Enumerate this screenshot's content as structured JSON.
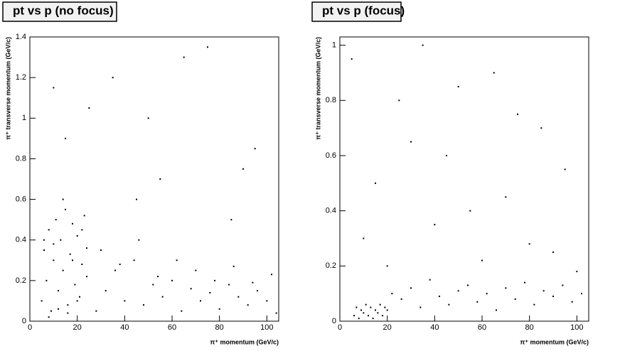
{
  "chart_data": [
    {
      "type": "scatter",
      "title": "pt vs p (no focus)",
      "xlabel": "π⁺ momentum (GeV/c)",
      "ylabel": "π⁺ transverse momentum (GeV/c)",
      "color": "#000000",
      "xlim": [
        0,
        105
      ],
      "ylim": [
        0,
        1.4
      ],
      "xticks": [
        0,
        20,
        40,
        60,
        80,
        100
      ],
      "yticks": [
        0,
        0.2,
        0.4,
        0.6,
        0.8,
        1,
        1.2,
        1.4
      ],
      "x": [
        5,
        6,
        7,
        8,
        9,
        10,
        11,
        12,
        13,
        14,
        15,
        16,
        17,
        18,
        19,
        20,
        21,
        22,
        23,
        24,
        8,
        12,
        16,
        20,
        10,
        14,
        18,
        22,
        6,
        24,
        28,
        32,
        36,
        40,
        44,
        48,
        52,
        56,
        60,
        64,
        68,
        72,
        76,
        80,
        84,
        88,
        92,
        96,
        100,
        104,
        30,
        38,
        46,
        54,
        62,
        70,
        78,
        86,
        94,
        102,
        15,
        35,
        55,
        75,
        95,
        25,
        45,
        65,
        85,
        10,
        50,
        90
      ],
      "y": [
        0.1,
        0.35,
        0.2,
        0.45,
        0.05,
        0.3,
        0.5,
        0.15,
        0.4,
        0.25,
        0.55,
        0.08,
        0.33,
        0.48,
        0.18,
        0.42,
        0.12,
        0.28,
        0.52,
        0.22,
        0.02,
        0.06,
        0.04,
        0.1,
        0.38,
        0.6,
        0.3,
        0.45,
        0.4,
        0.36,
        0.05,
        0.15,
        0.25,
        0.1,
        0.3,
        0.08,
        0.18,
        0.12,
        0.2,
        0.05,
        0.16,
        0.1,
        0.14,
        0.06,
        0.18,
        0.12,
        0.08,
        0.15,
        0.1,
        0.04,
        0.35,
        0.28,
        0.4,
        0.22,
        0.3,
        0.25,
        0.2,
        0.27,
        0.19,
        0.23,
        0.9,
        1.2,
        0.7,
        1.35,
        0.85,
        1.05,
        0.6,
        1.3,
        0.5,
        1.15,
        1.0,
        0.75
      ]
    },
    {
      "type": "scatter",
      "title": "pt vs p (focus)",
      "xlabel": "π⁺ momentum (GeV/c)",
      "ylabel": "π⁺ transverse momentum (GeV/c)",
      "color": "#000000",
      "xlim": [
        0,
        105
      ],
      "ylim": [
        0,
        1.03
      ],
      "xticks": [
        0,
        20,
        40,
        60,
        80,
        100
      ],
      "yticks": [
        0,
        0.2,
        0.4,
        0.6,
        0.8,
        1
      ],
      "x": [
        6,
        7,
        8,
        9,
        10,
        11,
        12,
        13,
        14,
        15,
        16,
        17,
        18,
        19,
        20,
        22,
        26,
        30,
        34,
        38,
        42,
        46,
        50,
        54,
        58,
        62,
        66,
        70,
        74,
        78,
        82,
        86,
        90,
        94,
        98,
        102,
        5,
        25,
        45,
        65,
        85,
        15,
        35,
        55,
        75,
        95,
        10,
        30,
        50,
        70,
        90,
        20,
        40,
        60,
        80,
        100
      ],
      "y": [
        0.02,
        0.05,
        0.01,
        0.04,
        0.03,
        0.06,
        0.02,
        0.05,
        0.01,
        0.04,
        0.03,
        0.06,
        0.02,
        0.05,
        0.04,
        0.1,
        0.08,
        0.12,
        0.05,
        0.15,
        0.09,
        0.06,
        0.11,
        0.13,
        0.07,
        0.1,
        0.04,
        0.12,
        0.08,
        0.14,
        0.06,
        0.11,
        0.09,
        0.13,
        0.07,
        0.1,
        0.95,
        0.8,
        0.6,
        0.9,
        0.7,
        0.5,
        1.0,
        0.4,
        0.75,
        0.55,
        0.3,
        0.65,
        0.85,
        0.45,
        0.25,
        0.2,
        0.35,
        0.22,
        0.28,
        0.18
      ]
    }
  ]
}
